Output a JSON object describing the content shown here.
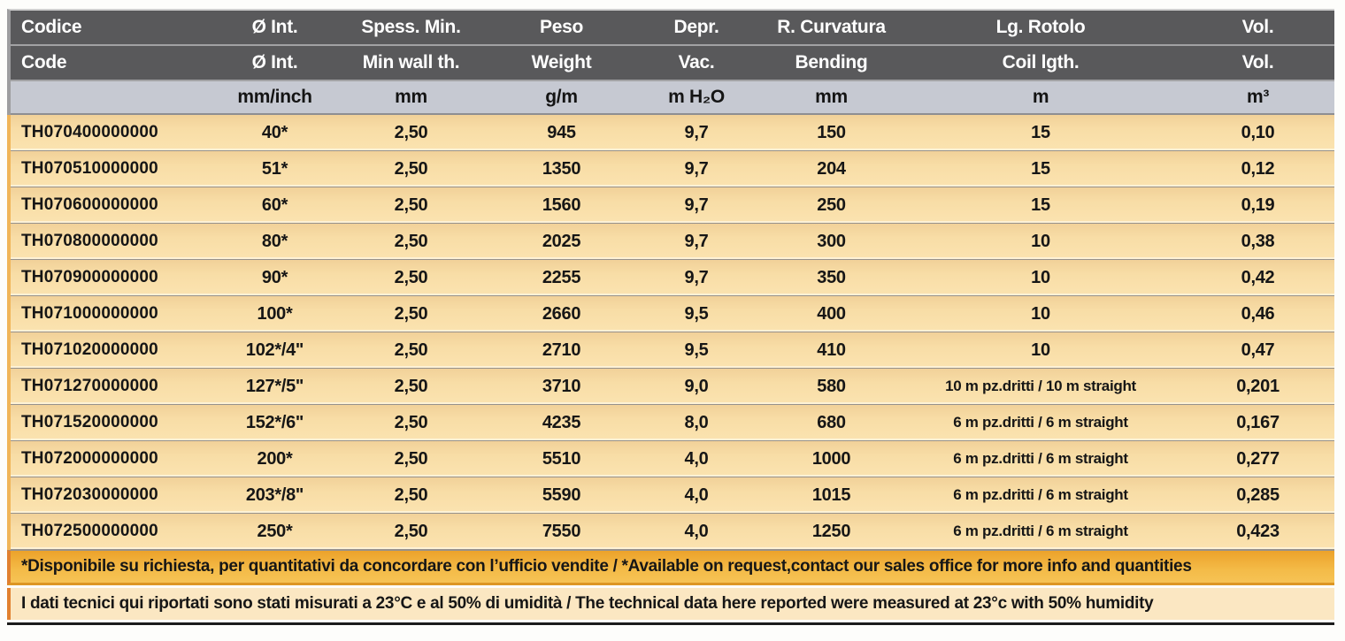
{
  "colors": {
    "header_bg": "#59595B",
    "units_bg": "#C6C9D2",
    "row_bg": "#F8DCA4",
    "note_availability_bg": "#F2B43C",
    "note_conditions_bg": "#FBE7C2",
    "bottom_rule": "#1B1B1B"
  },
  "table": {
    "header_it": [
      "Codice",
      "Ø Int.",
      "Spess. Min.",
      "Peso",
      "Depr.",
      "R. Curvatura",
      "Lg. Rotolo",
      "Vol."
    ],
    "header_en": [
      "Code",
      "Ø Int.",
      "Min wall th.",
      "Weight",
      "Vac.",
      "Bending",
      "Coil lgth.",
      "Vol."
    ],
    "units": [
      "",
      "mm/inch",
      "mm",
      "g/m",
      "m H₂O",
      "mm",
      "m",
      "m³"
    ],
    "rows": [
      {
        "code": "TH070400000000",
        "diameter": "40*",
        "wall": "2,50",
        "weight": "945",
        "vacuum": "9,7",
        "bending": "150",
        "coil": "15",
        "volume": "0,10"
      },
      {
        "code": "TH070510000000",
        "diameter": "51*",
        "wall": "2,50",
        "weight": "1350",
        "vacuum": "9,7",
        "bending": "204",
        "coil": "15",
        "volume": "0,12"
      },
      {
        "code": "TH070600000000",
        "diameter": "60*",
        "wall": "2,50",
        "weight": "1560",
        "vacuum": "9,7",
        "bending": "250",
        "coil": "15",
        "volume": "0,19"
      },
      {
        "code": "TH070800000000",
        "diameter": "80*",
        "wall": "2,50",
        "weight": "2025",
        "vacuum": "9,7",
        "bending": "300",
        "coil": "10",
        "volume": "0,38"
      },
      {
        "code": "TH070900000000",
        "diameter": "90*",
        "wall": "2,50",
        "weight": "2255",
        "vacuum": "9,7",
        "bending": "350",
        "coil": "10",
        "volume": "0,42"
      },
      {
        "code": "TH071000000000",
        "diameter": "100*",
        "wall": "2,50",
        "weight": "2660",
        "vacuum": "9,5",
        "bending": "400",
        "coil": "10",
        "volume": "0,46"
      },
      {
        "code": "TH071020000000",
        "diameter": "102*/4\"",
        "wall": "2,50",
        "weight": "2710",
        "vacuum": "9,5",
        "bending": "410",
        "coil": "10",
        "volume": "0,47"
      },
      {
        "code": "TH071270000000",
        "diameter": "127*/5\"",
        "wall": "2,50",
        "weight": "3710",
        "vacuum": "9,0",
        "bending": "580",
        "coil": "10 m pz.dritti / 10 m straight",
        "volume": "0,201"
      },
      {
        "code": "TH071520000000",
        "diameter": "152*/6\"",
        "wall": "2,50",
        "weight": "4235",
        "vacuum": "8,0",
        "bending": "680",
        "coil": "6 m pz.dritti / 6 m straight",
        "volume": "0,167"
      },
      {
        "code": "TH072000000000",
        "diameter": "200*",
        "wall": "2,50",
        "weight": "5510",
        "vacuum": "4,0",
        "bending": "1000",
        "coil": "6 m pz.dritti / 6 m straight",
        "volume": "0,277"
      },
      {
        "code": "TH072030000000",
        "diameter": "203*/8\"",
        "wall": "2,50",
        "weight": "5590",
        "vacuum": "4,0",
        "bending": "1015",
        "coil": "6 m pz.dritti / 6 m straight",
        "volume": "0,285"
      },
      {
        "code": "TH072500000000",
        "diameter": "250*",
        "wall": "2,50",
        "weight": "7550",
        "vacuum": "4,0",
        "bending": "1250",
        "coil": "6 m pz.dritti / 6 m straight",
        "volume": "0,423"
      }
    ],
    "note_availability": "*Disponibile su richiesta, per quantitativi da concordare con l’ufficio vendite / *Available on request,contact our sales office for more info and quantities",
    "note_conditions": "I dati tecnici qui riportati sono stati misurati a 23°C e al 50% di umidità / The technical data here reported were measured at 23°c with 50% humidity"
  }
}
